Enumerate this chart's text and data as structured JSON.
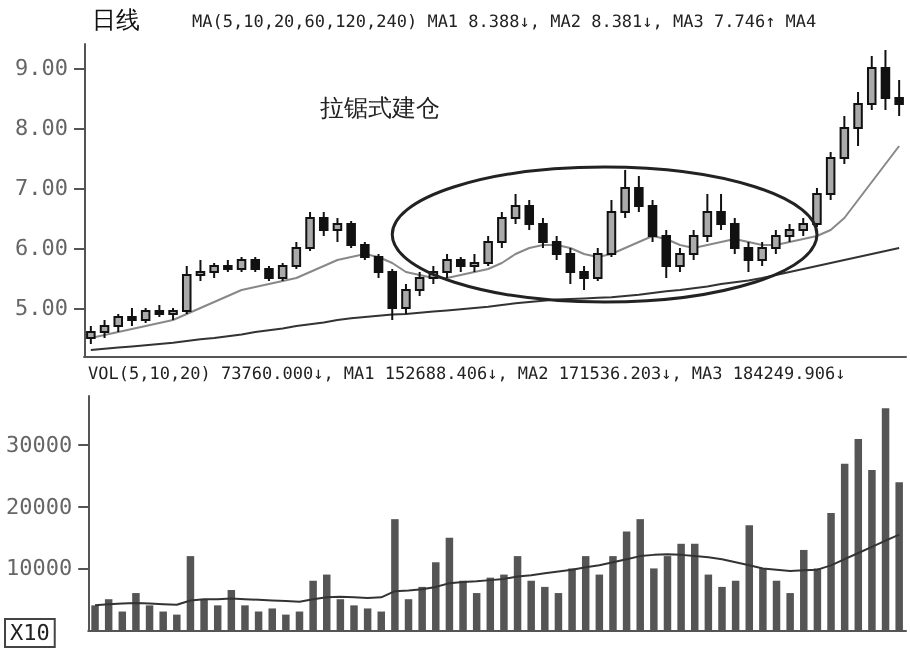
{
  "chart_data": [
    {
      "type": "candlestick",
      "title": "日线",
      "categories": [
        null,
        null,
        null,
        null,
        null,
        null,
        null,
        null,
        null,
        null,
        null,
        null,
        null,
        null,
        null,
        null,
        null,
        null,
        null,
        null,
        null,
        null,
        null,
        null,
        null,
        null,
        null,
        null,
        null,
        null,
        null,
        null,
        null,
        null,
        null,
        null,
        null,
        null,
        null,
        null,
        null,
        null,
        null,
        null,
        null,
        null,
        null,
        null,
        null,
        null,
        null,
        null,
        null,
        null,
        null,
        null,
        null,
        null,
        null,
        null
      ],
      "ohlc": [
        [
          4.5,
          4.7,
          4.4,
          4.6
        ],
        [
          4.6,
          4.8,
          4.5,
          4.7
        ],
        [
          4.7,
          4.9,
          4.6,
          4.85
        ],
        [
          4.85,
          5.0,
          4.7,
          4.8
        ],
        [
          4.8,
          5.0,
          4.75,
          4.95
        ],
        [
          4.95,
          5.05,
          4.85,
          4.9
        ],
        [
          4.9,
          5.0,
          4.8,
          4.95
        ],
        [
          4.95,
          5.7,
          4.9,
          5.55
        ],
        [
          5.55,
          5.8,
          5.45,
          5.6
        ],
        [
          5.6,
          5.75,
          5.5,
          5.7
        ],
        [
          5.7,
          5.8,
          5.6,
          5.65
        ],
        [
          5.65,
          5.85,
          5.6,
          5.8
        ],
        [
          5.8,
          5.85,
          5.6,
          5.65
        ],
        [
          5.65,
          5.7,
          5.45,
          5.5
        ],
        [
          5.5,
          5.75,
          5.45,
          5.7
        ],
        [
          5.7,
          6.1,
          5.65,
          6.0
        ],
        [
          6.0,
          6.6,
          5.95,
          6.5
        ],
        [
          6.5,
          6.6,
          6.2,
          6.3
        ],
        [
          6.3,
          6.5,
          6.1,
          6.4
        ],
        [
          6.4,
          6.45,
          6.0,
          6.05
        ],
        [
          6.05,
          6.1,
          5.8,
          5.85
        ],
        [
          5.85,
          5.9,
          5.5,
          5.6
        ],
        [
          5.6,
          5.65,
          4.8,
          5.0
        ],
        [
          5.0,
          5.4,
          4.9,
          5.3
        ],
        [
          5.3,
          5.6,
          5.2,
          5.5
        ],
        [
          5.5,
          5.7,
          5.4,
          5.6
        ],
        [
          5.6,
          5.9,
          5.5,
          5.8
        ],
        [
          5.8,
          5.85,
          5.6,
          5.7
        ],
        [
          5.7,
          5.9,
          5.6,
          5.75
        ],
        [
          5.75,
          6.2,
          5.7,
          6.1
        ],
        [
          6.1,
          6.6,
          6.0,
          6.5
        ],
        [
          6.5,
          6.9,
          6.4,
          6.7
        ],
        [
          6.7,
          6.8,
          6.3,
          6.4
        ],
        [
          6.4,
          6.5,
          6.0,
          6.1
        ],
        [
          6.1,
          6.2,
          5.8,
          5.9
        ],
        [
          5.9,
          6.0,
          5.4,
          5.6
        ],
        [
          5.6,
          5.7,
          5.3,
          5.5
        ],
        [
          5.5,
          6.0,
          5.45,
          5.9
        ],
        [
          5.9,
          6.8,
          5.85,
          6.6
        ],
        [
          6.6,
          7.3,
          6.5,
          7.0
        ],
        [
          7.0,
          7.2,
          6.6,
          6.7
        ],
        [
          6.7,
          6.8,
          6.1,
          6.2
        ],
        [
          6.2,
          6.3,
          5.5,
          5.7
        ],
        [
          5.7,
          6.0,
          5.6,
          5.9
        ],
        [
          5.9,
          6.3,
          5.8,
          6.2
        ],
        [
          6.2,
          6.9,
          6.1,
          6.6
        ],
        [
          6.6,
          6.9,
          6.3,
          6.4
        ],
        [
          6.4,
          6.5,
          5.9,
          6.0
        ],
        [
          6.0,
          6.1,
          5.6,
          5.8
        ],
        [
          5.8,
          6.1,
          5.7,
          6.0
        ],
        [
          6.0,
          6.3,
          5.9,
          6.2
        ],
        [
          6.2,
          6.4,
          6.1,
          6.3
        ],
        [
          6.3,
          6.5,
          6.2,
          6.4
        ],
        [
          6.4,
          7.0,
          6.35,
          6.9
        ],
        [
          6.9,
          7.6,
          6.8,
          7.5
        ],
        [
          7.5,
          8.2,
          7.4,
          8.0
        ],
        [
          8.0,
          8.6,
          7.7,
          8.4
        ],
        [
          8.4,
          9.2,
          8.3,
          9.0
        ],
        [
          9.0,
          9.3,
          8.3,
          8.5
        ],
        [
          8.5,
          8.8,
          8.2,
          8.4
        ]
      ],
      "series": [
        {
          "type": "line",
          "color": "#888888",
          "values": [
            4.5,
            4.55,
            4.6,
            4.65,
            4.7,
            4.75,
            4.8,
            4.9,
            5.0,
            5.1,
            5.2,
            5.3,
            5.35,
            5.4,
            5.45,
            5.5,
            5.6,
            5.7,
            5.8,
            5.85,
            5.9,
            5.85,
            5.75,
            5.6,
            5.55,
            5.5,
            5.5,
            5.55,
            5.6,
            5.65,
            5.75,
            5.9,
            6.0,
            6.05,
            6.05,
            6.0,
            5.9,
            5.85,
            5.9,
            6.0,
            6.1,
            6.2,
            6.15,
            6.05,
            6.0,
            6.05,
            6.1,
            6.15,
            6.1,
            6.05,
            6.05,
            6.1,
            6.15,
            6.2,
            6.3,
            6.5,
            6.8,
            7.1,
            7.4,
            7.7
          ]
        },
        {
          "type": "line",
          "color": "#333333",
          "values": [
            4.3,
            4.32,
            4.34,
            4.36,
            4.38,
            4.4,
            4.42,
            4.45,
            4.48,
            4.5,
            4.53,
            4.56,
            4.6,
            4.63,
            4.66,
            4.7,
            4.73,
            4.76,
            4.8,
            4.83,
            4.85,
            4.87,
            4.89,
            4.9,
            4.92,
            4.94,
            4.96,
            4.98,
            5.0,
            5.02,
            5.05,
            5.08,
            5.1,
            5.12,
            5.14,
            5.15,
            5.16,
            5.17,
            5.18,
            5.2,
            5.22,
            5.25,
            5.28,
            5.3,
            5.33,
            5.36,
            5.4,
            5.43,
            5.46,
            5.5,
            5.55,
            5.6,
            5.65,
            5.7,
            5.75,
            5.8,
            5.85,
            5.9,
            5.95,
            6.0
          ]
        }
      ],
      "ylim": [
        4.2,
        9.4
      ],
      "yticks": [
        {
          "value": 5,
          "label": "5.00"
        },
        {
          "value": 6,
          "label": "6.00"
        },
        {
          "value": 7,
          "label": "7.00"
        },
        {
          "value": 8,
          "label": "8.00"
        },
        {
          "value": 9,
          "label": "9.00"
        }
      ],
      "tick_labels": "y",
      "grid": false,
      "annotations": [
        "MA(5,10,20,60,120,240) MA1 8.388↓, MA2 8.381↓, MA3 7.746↑ MA4",
        "拉锯式建仓"
      ]
    },
    {
      "type": "bar",
      "categories": [
        null,
        null,
        null,
        null,
        null,
        null,
        null,
        null,
        null,
        null,
        null,
        null,
        null,
        null,
        null,
        null,
        null,
        null,
        null,
        null,
        null,
        null,
        null,
        null,
        null,
        null,
        null,
        null,
        null,
        null,
        null,
        null,
        null,
        null,
        null,
        null,
        null,
        null,
        null,
        null,
        null,
        null,
        null,
        null,
        null,
        null,
        null,
        null,
        null,
        null,
        null,
        null,
        null,
        null,
        null,
        null,
        null,
        null,
        null,
        null
      ],
      "series": [
        {
          "type": "bar",
          "color": "#555555",
          "values": [
            4000,
            5000,
            3000,
            6000,
            4000,
            3000,
            2500,
            12000,
            5000,
            4000,
            6500,
            4000,
            3000,
            3500,
            2500,
            3000,
            8000,
            9000,
            5000,
            4000,
            3500,
            3000,
            18000,
            5000,
            7000,
            11000,
            15000,
            8000,
            6000,
            8500,
            9000,
            12000,
            8000,
            7000,
            6000,
            10000,
            12000,
            9000,
            12000,
            16000,
            18000,
            10000,
            12000,
            14000,
            14000,
            9000,
            7000,
            8000,
            17000,
            10000,
            8000,
            6000,
            13000,
            10000,
            19000,
            27000,
            31000,
            26000,
            36000,
            24000
          ]
        },
        {
          "type": "line",
          "color": "#333333",
          "values": [
            4000,
            4200,
            4300,
            4400,
            4300,
            4200,
            4100,
            4800,
            5000,
            5000,
            5100,
            5000,
            4900,
            4800,
            4700,
            4600,
            5000,
            5300,
            5400,
            5300,
            5200,
            5300,
            6300,
            6400,
            6600,
            7000,
            7600,
            7800,
            7900,
            8100,
            8300,
            8700,
            8900,
            9200,
            9500,
            9800,
            10200,
            10500,
            11000,
            11500,
            12000,
            12200,
            12300,
            12200,
            12000,
            11800,
            11500,
            11000,
            10500,
            10000,
            9800,
            9600,
            9700,
            9800,
            10500,
            11500,
            12500,
            13500,
            14500,
            15500
          ]
        }
      ],
      "ylim": [
        0,
        38000
      ],
      "yticks": [
        10000,
        20000,
        30000
      ],
      "tick_labels": "y",
      "grid": false,
      "annotations": [
        "VOL(5,10,20) 73760.000↓, MA1 152688.406↓, MA2 171536.203↓, MA3 184249.906↓",
        "X10"
      ]
    }
  ]
}
